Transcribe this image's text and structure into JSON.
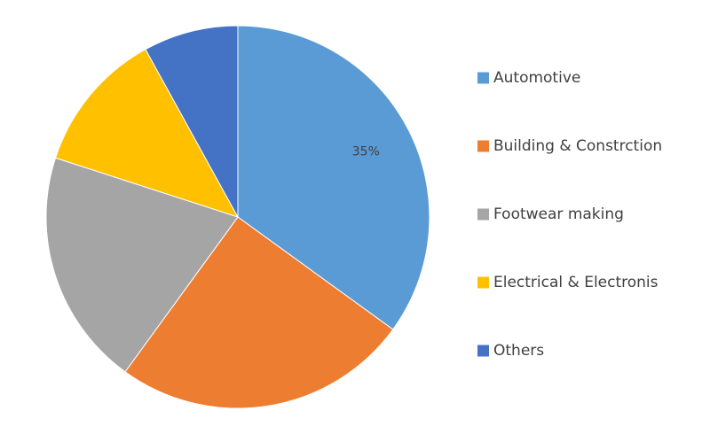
{
  "chart_data": {
    "type": "pie",
    "title": "",
    "start_angle_deg": 0,
    "direction": "clockwise",
    "legend_position": "right",
    "series": [
      {
        "categories": [
          "Automotive",
          "Building & Constrction",
          "Footwear making",
          "Electrical & Electronis",
          "Others"
        ],
        "values": [
          35,
          25,
          20,
          12,
          8
        ],
        "data_labels": [
          "35%",
          "",
          "",
          "",
          ""
        ],
        "colors": [
          "#5B9BD5",
          "#ED7D31",
          "#A5A5A5",
          "#FFC000",
          "#4472C4"
        ]
      }
    ]
  }
}
